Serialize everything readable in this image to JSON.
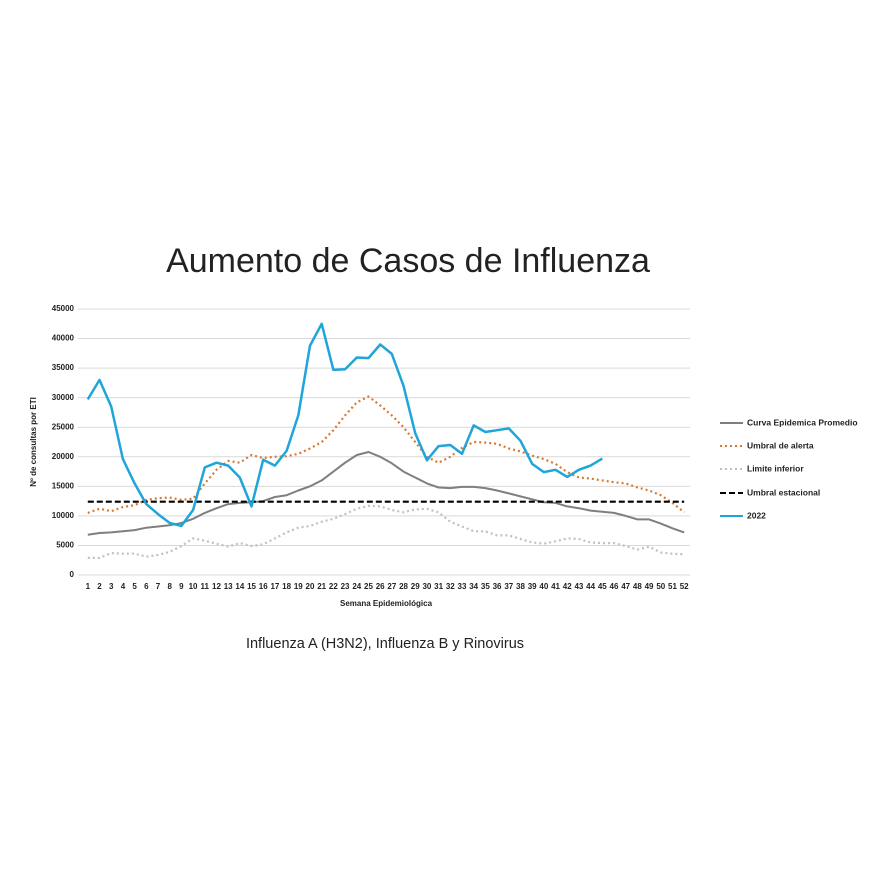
{
  "chart_data": {
    "type": "line",
    "title": "Aumento de Casos de Influenza",
    "subtitle": "Influenza A (H3N2), Influenza B y Rinovirus",
    "x_label": "Semana Epidemiológica",
    "y_label": "Nº de consultas por ETI",
    "categories": [
      "1",
      "2",
      "3",
      "4",
      "5",
      "6",
      "7",
      "8",
      "9",
      "10",
      "11",
      "12",
      "13",
      "14",
      "15",
      "16",
      "17",
      "18",
      "19",
      "20",
      "21",
      "22",
      "23",
      "24",
      "25",
      "26",
      "27",
      "28",
      "29",
      "30",
      "31",
      "32",
      "33",
      "34",
      "35",
      "36",
      "37",
      "38",
      "39",
      "40",
      "41",
      "42",
      "43",
      "44",
      "45",
      "46",
      "47",
      "48",
      "49",
      "50",
      "51",
      "52"
    ],
    "ylim": [
      0,
      45000
    ],
    "yticks": [
      0,
      5000,
      10000,
      15000,
      20000,
      25000,
      30000,
      35000,
      40000,
      45000
    ],
    "grid": true,
    "legend": "right",
    "series": [
      {
        "name": "Curva Epidemica Promedio",
        "color": "#7f7f7f",
        "style": "solid",
        "values": [
          6800,
          7100,
          7200,
          7400,
          7600,
          8000,
          8200,
          8400,
          8800,
          9500,
          10500,
          11300,
          12000,
          12200,
          12300,
          12500,
          13200,
          13500,
          14300,
          15000,
          16000,
          17500,
          19000,
          20300,
          20800,
          20000,
          18900,
          17500,
          16500,
          15500,
          14800,
          14700,
          14900,
          14900,
          14700,
          14300,
          13800,
          13300,
          12800,
          12300,
          12200,
          11600,
          11300,
          10900,
          10700,
          10500,
          10000,
          9400,
          9400,
          8700,
          7900,
          7200
        ]
      },
      {
        "name": "Umbral de alerta",
        "color": "#d9782f",
        "style": "dotted",
        "values": [
          10500,
          11200,
          10800,
          11500,
          11800,
          12700,
          13000,
          13100,
          12700,
          12900,
          15500,
          17800,
          19300,
          19000,
          20300,
          19800,
          20000,
          20100,
          20500,
          21400,
          22500,
          24500,
          27000,
          29200,
          30200,
          28700,
          27000,
          25000,
          22500,
          20000,
          19000,
          20000,
          21500,
          22500,
          22400,
          22200,
          21400,
          20900,
          20200,
          19600,
          18800,
          17400,
          16500,
          16300,
          16000,
          15700,
          15500,
          14800,
          14300,
          13500,
          12200,
          10600
        ]
      },
      {
        "name": "Limite inferior",
        "color": "#c0c0c0",
        "style": "dotted",
        "values": [
          2900,
          2900,
          3700,
          3600,
          3600,
          3100,
          3400,
          3900,
          4900,
          6200,
          5800,
          5300,
          4800,
          5400,
          4900,
          5200,
          6200,
          7200,
          8000,
          8300,
          9000,
          9500,
          10300,
          11200,
          11700,
          11600,
          11000,
          10600,
          11100,
          11200,
          10600,
          9000,
          8200,
          7400,
          7400,
          6700,
          6700,
          6100,
          5500,
          5300,
          5700,
          6200,
          6100,
          5500,
          5400,
          5400,
          4900,
          4300,
          4800,
          3800,
          3600,
          3500
        ]
      },
      {
        "name": "Umbral estacional",
        "color": "#000000",
        "style": "dashed",
        "values": [
          12400,
          12400,
          12400,
          12400,
          12400,
          12400,
          12400,
          12400,
          12400,
          12400,
          12400,
          12400,
          12400,
          12400,
          12400,
          12400,
          12400,
          12400,
          12400,
          12400,
          12400,
          12400,
          12400,
          12400,
          12400,
          12400,
          12400,
          12400,
          12400,
          12400,
          12400,
          12400,
          12400,
          12400,
          12400,
          12400,
          12400,
          12400,
          12400,
          12400,
          12400,
          12400,
          12400,
          12400,
          12400,
          12400,
          12400,
          12400,
          12400,
          12400,
          12400,
          12400
        ]
      },
      {
        "name": "2022",
        "color": "#1fa5d9",
        "style": "solid",
        "values": [
          29700,
          33000,
          28500,
          19600,
          15500,
          12000,
          10300,
          8800,
          8300,
          11000,
          18200,
          19000,
          18500,
          16500,
          11600,
          19500,
          18500,
          21000,
          27000,
          38800,
          42500,
          34700,
          34800,
          36800,
          36700,
          39000,
          37400,
          32000,
          24000,
          19400,
          21800,
          22000,
          20500,
          25300,
          24200,
          24500,
          24800,
          22700,
          18800,
          17400,
          17800,
          16600,
          17800,
          18500,
          19700,
          null,
          null,
          null,
          null,
          null,
          null,
          null
        ]
      }
    ]
  }
}
